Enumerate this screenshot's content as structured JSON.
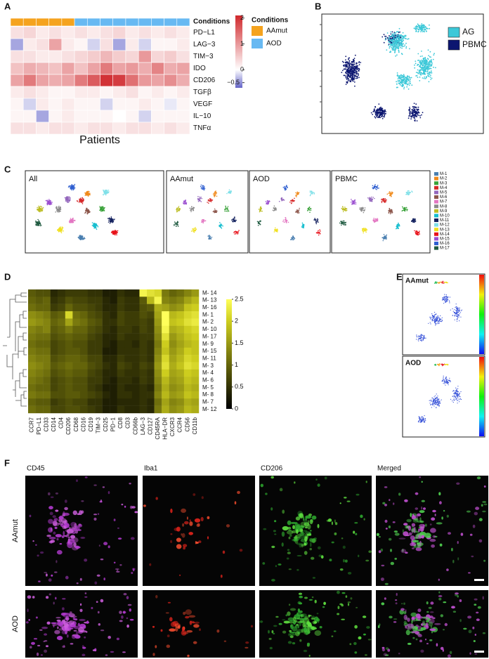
{
  "panel_a": {
    "label": "A",
    "header": "Conditions",
    "xlabel": "Patients",
    "rows": [
      "PD−L1",
      "LAG−3",
      "TIM−3",
      "IDO",
      "CD206",
      "TGFβ",
      "VEGF",
      "IL−10",
      "TNFα"
    ],
    "column_groups": [
      0,
      0,
      0,
      0,
      0,
      1,
      1,
      1,
      1,
      1,
      1,
      1,
      1,
      1
    ],
    "values": [
      [
        0.3,
        0.4,
        0.2,
        0.3,
        0.2,
        0.3,
        0.2,
        0.3,
        0.4,
        0.2,
        0.3,
        0.2,
        0.3,
        0.2
      ],
      [
        -0.4,
        0.2,
        0.3,
        0.9,
        0.2,
        0.1,
        -0.2,
        0.3,
        -0.4,
        0.2,
        -0.2,
        0.1,
        0.1,
        0.2
      ],
      [
        0.3,
        0.3,
        0.2,
        0.2,
        0.3,
        0.4,
        0.5,
        0.7,
        0.5,
        0.4,
        1.0,
        0.4,
        0.5,
        0.3
      ],
      [
        0.6,
        0.8,
        0.7,
        0.6,
        0.9,
        0.6,
        0.9,
        1.3,
        0.9,
        1.0,
        0.8,
        1.2,
        0.8,
        0.9
      ],
      [
        0.9,
        1.3,
        0.9,
        0.8,
        0.9,
        1.3,
        1.6,
        2.0,
        1.9,
        1.4,
        1.0,
        0.9,
        1.1,
        0.8
      ],
      [
        0.2,
        0.3,
        0.2,
        0.1,
        0.1,
        0.2,
        0.2,
        0.1,
        0.2,
        0.3,
        0.1,
        0.2,
        0.1,
        0.2
      ],
      [
        0.1,
        -0.2,
        0.2,
        0.1,
        0.2,
        0.1,
        0.1,
        -0.2,
        0.1,
        0.1,
        0.2,
        0.1,
        -0.1,
        0.1
      ],
      [
        0.1,
        0.1,
        -0.4,
        0.1,
        0.2,
        0.1,
        0.1,
        0.1,
        0.0,
        0.1,
        -0.2,
        0.1,
        0.1,
        0.1
      ],
      [
        0.3,
        0.3,
        0.2,
        0.3,
        0.3,
        0.2,
        0.3,
        0.3,
        0.2,
        0.3,
        0.3,
        0.2,
        0.3,
        0.2
      ]
    ],
    "legend": {
      "title": "Conditions",
      "items": [
        {
          "name": "AAmut",
          "color": "#f5a31e"
        },
        {
          "name": "AOD",
          "color": "#68b9f2"
        }
      ]
    },
    "colorbar": {
      "lim": [
        -0.7,
        2.1
      ],
      "ticks": [
        2,
        1,
        0,
        {
          "value": -0.5,
          "label": "−0.5"
        }
      ]
    }
  },
  "panel_b": {
    "label": "B",
    "legend": [
      {
        "name": "AG",
        "color": "#3cc8d8"
      },
      {
        "name": "PBMC",
        "color": "#0c1670"
      }
    ]
  },
  "panel_c": {
    "label": "C",
    "facets": [
      "All",
      "AAmut",
      "AOD",
      "PBMC"
    ],
    "clusters": [
      {
        "name": "M-1",
        "color": "#4a7fb0"
      },
      {
        "name": "M-2",
        "color": "#f08a1c"
      },
      {
        "name": "M-3",
        "color": "#3aa23a"
      },
      {
        "name": "M-4",
        "color": "#d62728"
      },
      {
        "name": "M-5",
        "color": "#9467bd"
      },
      {
        "name": "M-6",
        "color": "#8c564b"
      },
      {
        "name": "M-7",
        "color": "#e377c2"
      },
      {
        "name": "M-8",
        "color": "#8a8a8a"
      },
      {
        "name": "M-9",
        "color": "#bcbd22"
      },
      {
        "name": "M-10",
        "color": "#17becf"
      },
      {
        "name": "M-11",
        "color": "#13205e"
      },
      {
        "name": "M-12",
        "color": "#7fe0e8"
      },
      {
        "name": "M-13",
        "color": "#f0e020"
      },
      {
        "name": "M-14",
        "color": "#e8121a"
      },
      {
        "name": "M-15",
        "color": "#9b4fd0"
      },
      {
        "name": "M-16",
        "color": "#2f5fd0"
      },
      {
        "name": "M-17",
        "color": "#1f5a40"
      }
    ]
  },
  "panel_d": {
    "label": "D",
    "rows": [
      "M- 14",
      "M- 13",
      "M- 16",
      "M- 1",
      "M- 2",
      "M- 10",
      "M- 17",
      "M- 9",
      "M- 15",
      "M- 11",
      "M- 3",
      "M- 4",
      "M- 6",
      "M- 5",
      "M- 8",
      "M- 7",
      "M- 12"
    ],
    "columns": [
      "CCR7",
      "PD−L1",
      "CD33",
      "CD14",
      "CD4",
      "CD206",
      "CD68",
      "CD16",
      "CD19",
      "TIM−3",
      "CD25",
      "PD−1",
      "CD8",
      "CD3",
      "CD66b",
      "LAG−3",
      "CD127",
      "CD45RA",
      "HLA−DR",
      "CXCR3",
      "CCR4",
      "CD56",
      "CD11b"
    ],
    "values": [
      [
        0.9,
        0.8,
        0.8,
        0.4,
        0.5,
        0.6,
        0.6,
        0.6,
        0.5,
        0.5,
        0.3,
        0.3,
        0.5,
        0.4,
        0.4,
        2.4,
        2.2,
        2.1,
        1.2,
        1.0,
        1.1,
        1.3,
        1.5
      ],
      [
        1.0,
        0.9,
        1.0,
        0.5,
        0.6,
        0.8,
        0.7,
        0.7,
        0.6,
        0.6,
        0.4,
        0.3,
        0.6,
        0.5,
        0.5,
        0.9,
        1.8,
        2.4,
        1.3,
        1.2,
        1.3,
        1.6,
        1.8
      ],
      [
        1.1,
        1.0,
        1.0,
        0.6,
        0.7,
        1.0,
        0.8,
        0.8,
        0.7,
        0.6,
        0.4,
        0.4,
        0.6,
        0.5,
        0.5,
        0.8,
        0.9,
        1.7,
        1.6,
        1.4,
        1.5,
        1.9,
        2.0
      ],
      [
        1.4,
        1.3,
        1.2,
        0.9,
        1.0,
        2.1,
        1.1,
        1.0,
        0.8,
        0.7,
        0.5,
        0.4,
        0.7,
        0.6,
        0.6,
        0.8,
        0.7,
        1.6,
        2.5,
        1.8,
        1.9,
        2.1,
        2.2
      ],
      [
        1.5,
        1.4,
        1.3,
        1.0,
        1.1,
        1.6,
        1.2,
        1.1,
        0.9,
        0.8,
        0.5,
        0.5,
        0.7,
        0.6,
        0.6,
        0.7,
        0.6,
        1.5,
        2.5,
        1.9,
        2.0,
        2.2,
        2.3
      ],
      [
        1.3,
        1.2,
        1.3,
        0.9,
        1.0,
        1.2,
        1.0,
        1.0,
        0.8,
        0.7,
        0.5,
        0.4,
        0.6,
        0.6,
        0.5,
        0.7,
        0.6,
        1.4,
        2.4,
        1.7,
        1.8,
        2.0,
        2.1
      ],
      [
        1.2,
        1.1,
        1.1,
        0.8,
        0.9,
        1.0,
        0.9,
        0.9,
        0.7,
        0.6,
        0.4,
        0.4,
        0.6,
        0.5,
        0.5,
        0.6,
        0.6,
        1.3,
        2.2,
        1.5,
        1.7,
        1.9,
        2.0
      ],
      [
        1.1,
        1.0,
        1.0,
        0.7,
        0.8,
        0.9,
        0.8,
        0.8,
        0.6,
        0.6,
        0.4,
        0.3,
        0.5,
        0.5,
        0.4,
        0.6,
        0.5,
        1.2,
        2.0,
        1.4,
        1.6,
        1.8,
        1.9
      ],
      [
        1.2,
        1.1,
        1.1,
        0.7,
        0.8,
        0.9,
        0.9,
        0.8,
        0.6,
        0.6,
        0.3,
        0.3,
        0.5,
        0.5,
        0.5,
        0.6,
        0.5,
        1.3,
        1.9,
        1.5,
        1.7,
        2.0,
        1.9
      ],
      [
        1.3,
        1.2,
        1.2,
        0.8,
        0.9,
        1.0,
        1.0,
        0.9,
        0.7,
        0.7,
        0.4,
        0.4,
        0.6,
        0.5,
        0.5,
        0.6,
        0.5,
        1.4,
        2.1,
        1.6,
        1.8,
        2.1,
        2.0
      ],
      [
        1.4,
        1.3,
        1.2,
        0.9,
        1.0,
        1.1,
        1.0,
        1.0,
        0.8,
        0.7,
        0.5,
        0.4,
        0.7,
        0.6,
        0.5,
        0.7,
        0.6,
        1.5,
        2.2,
        1.7,
        1.9,
        2.2,
        2.1
      ],
      [
        1.3,
        1.2,
        1.1,
        0.8,
        0.9,
        1.0,
        0.9,
        0.9,
        0.7,
        0.6,
        0.4,
        0.4,
        0.6,
        0.5,
        0.5,
        0.6,
        0.5,
        1.4,
        2.0,
        1.6,
        1.7,
        2.0,
        1.9
      ],
      [
        1.2,
        1.1,
        1.0,
        0.7,
        0.8,
        0.9,
        0.8,
        0.8,
        0.6,
        0.6,
        0.4,
        0.3,
        0.5,
        0.5,
        0.4,
        0.6,
        0.5,
        1.3,
        1.8,
        1.5,
        1.6,
        1.9,
        1.8
      ],
      [
        1.1,
        1.0,
        1.0,
        0.7,
        0.8,
        0.9,
        0.8,
        0.8,
        0.6,
        0.5,
        0.3,
        0.3,
        0.5,
        0.4,
        0.4,
        0.5,
        0.4,
        1.2,
        1.7,
        1.4,
        1.5,
        1.8,
        1.7
      ],
      [
        1.2,
        1.1,
        1.1,
        0.8,
        0.8,
        0.9,
        0.9,
        0.8,
        0.7,
        0.6,
        0.4,
        0.3,
        0.5,
        0.5,
        0.4,
        0.5,
        0.5,
        1.3,
        1.8,
        1.5,
        1.6,
        1.9,
        1.8
      ],
      [
        1.0,
        0.9,
        0.9,
        0.6,
        0.7,
        0.8,
        0.7,
        0.7,
        0.5,
        0.5,
        0.3,
        0.3,
        0.4,
        0.4,
        0.4,
        0.5,
        0.4,
        1.1,
        1.6,
        1.3,
        1.4,
        1.7,
        1.6
      ],
      [
        1.1,
        1.0,
        1.0,
        0.7,
        0.7,
        0.8,
        0.8,
        0.7,
        0.6,
        0.5,
        0.3,
        0.3,
        0.5,
        0.4,
        0.4,
        0.5,
        0.4,
        1.2,
        1.7,
        1.4,
        1.5,
        1.8,
        1.7
      ]
    ],
    "colorbar": {
      "lim": [
        0,
        2.5
      ],
      "ticks": [
        2.5,
        2,
        1.5,
        1,
        0.5,
        0
      ]
    }
  },
  "panel_e": {
    "label": "E",
    "facets": [
      "AAmut",
      "AOD"
    ]
  },
  "panel_f": {
    "label": "F",
    "channels": [
      {
        "name": "CD45",
        "color": "#a23fc8"
      },
      {
        "name": "Iba1",
        "color": "#e3241c"
      },
      {
        "name": "CD206",
        "color": "#2ea82e"
      },
      {
        "name": "Merged",
        "color": "#444444"
      }
    ],
    "rows": [
      "AAmut",
      "AOD"
    ]
  }
}
